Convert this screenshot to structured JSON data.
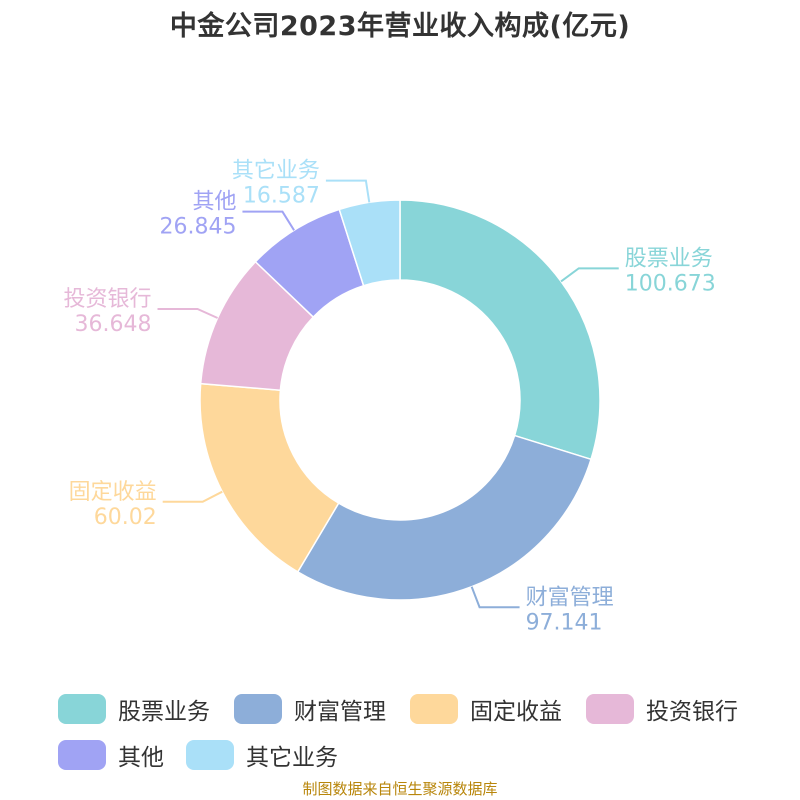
{
  "title": "中金公司2023年营业收入构成(亿元)",
  "source": "制图数据来自恒生聚源数据库",
  "chart_data": {
    "type": "pie",
    "title": "中金公司2023年营业收入构成(亿元)",
    "donut": true,
    "legend_position": "bottom",
    "categories": [
      "股票业务",
      "财富管理",
      "固定收益",
      "投资银行",
      "其他",
      "其它业务"
    ],
    "values": [
      100.673,
      97.141,
      60.02,
      36.648,
      26.845,
      16.587
    ],
    "value_labels": [
      "100.673",
      "97.141",
      "60.02",
      "36.648",
      "26.845",
      "16.587"
    ],
    "colors": [
      "#88d5d8",
      "#8daed9",
      "#fed89b",
      "#e6b8d8",
      "#a0a3f4",
      "#aae0f8"
    ]
  }
}
